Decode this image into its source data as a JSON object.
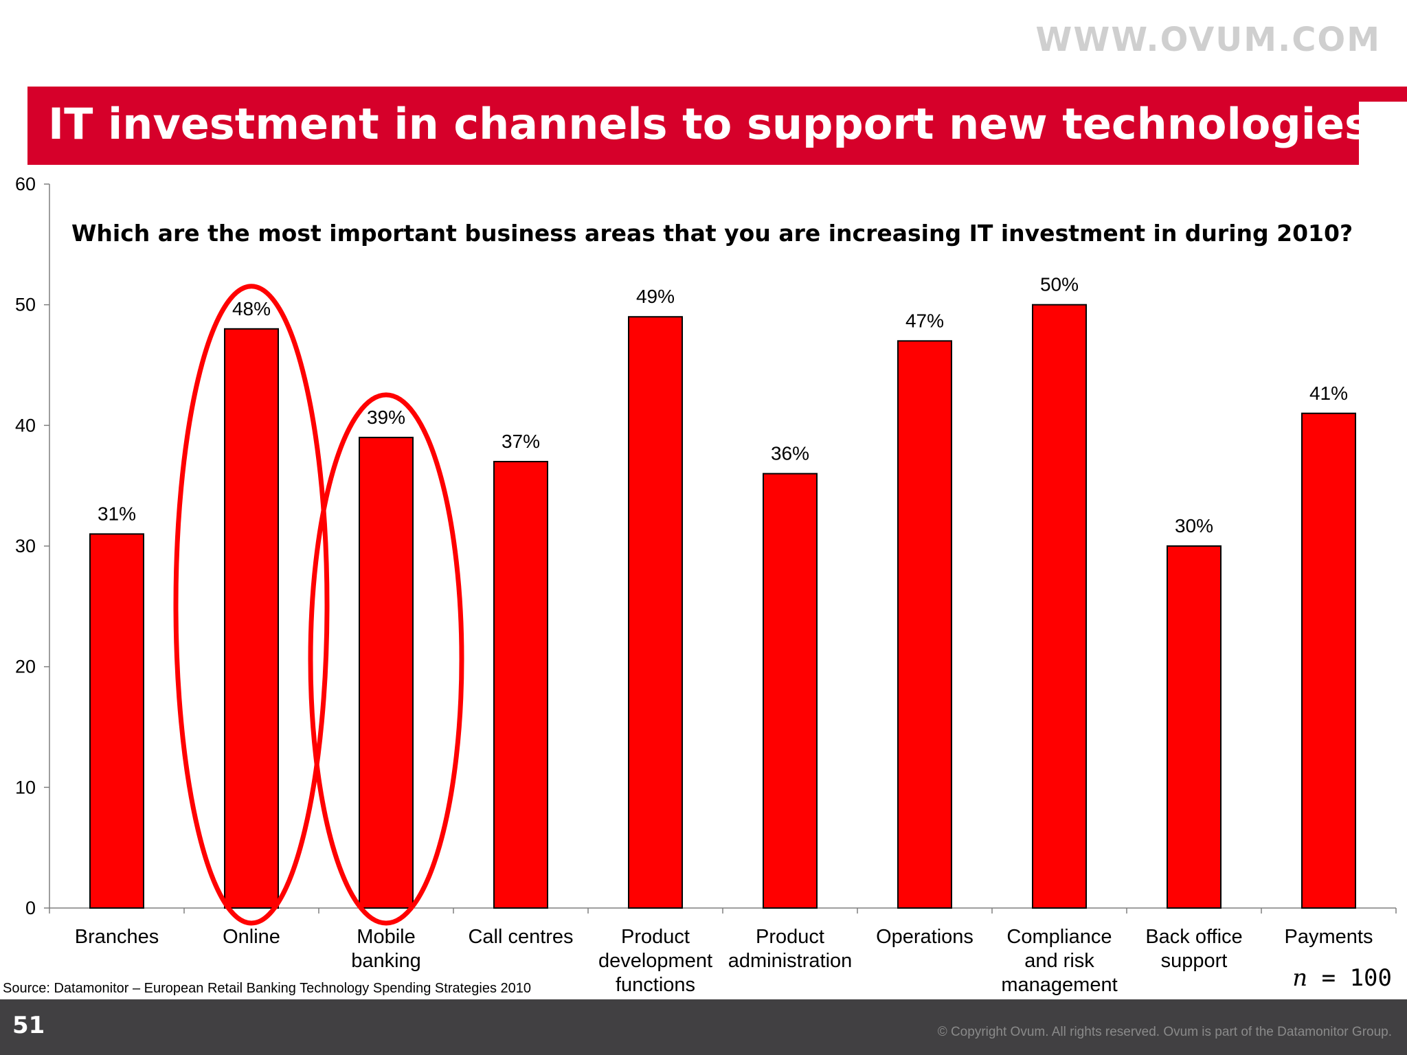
{
  "header": {
    "site_url": "WWW.OVUM.COM",
    "title": "IT investment in channels to support new technologies",
    "banner_color": "#d6002a"
  },
  "chart_data": {
    "type": "bar",
    "title": "Which are the most important business areas that you are increasing IT investment in during 2010?",
    "categories": [
      [
        "Branches"
      ],
      [
        "Online"
      ],
      [
        "Mobile",
        "banking"
      ],
      [
        "Call centres"
      ],
      [
        "Product",
        "development",
        "functions"
      ],
      [
        "Product",
        "administration"
      ],
      [
        "Operations"
      ],
      [
        "Compliance",
        "and risk",
        "management"
      ],
      [
        "Back office",
        "support"
      ],
      [
        "Payments"
      ]
    ],
    "values": [
      31,
      48,
      39,
      37,
      49,
      36,
      47,
      50,
      30,
      41
    ],
    "data_labels": [
      "31%",
      "48%",
      "39%",
      "37%",
      "49%",
      "36%",
      "47%",
      "50%",
      "30%",
      "41%"
    ],
    "ylim": [
      0,
      60
    ],
    "yticks": [
      0,
      10,
      20,
      30,
      40,
      50,
      60
    ],
    "bar_color": "#ff0000",
    "highlight_color": "#ff0000",
    "highlighted_categories": [
      1,
      2
    ],
    "grid": false,
    "xlabel": "",
    "ylabel": ""
  },
  "footer": {
    "source": "Source: Datamonitor – European Retail Banking Technology Spending Strategies 2010",
    "n_symbol": "n",
    "n_value": " = 100",
    "page_number": "51",
    "copyright": "© Copyright Ovum. All rights reserved. Ovum is part of the Datamonitor Group."
  }
}
